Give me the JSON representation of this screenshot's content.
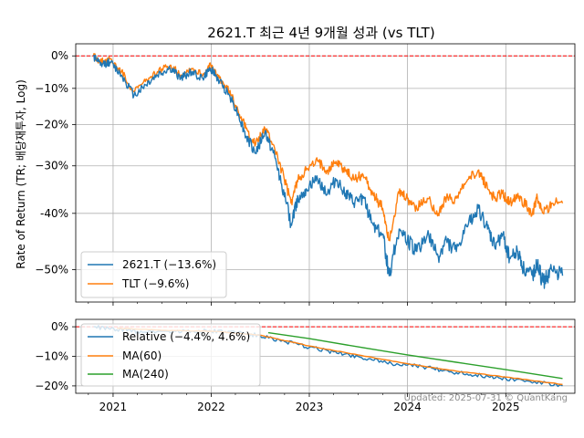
{
  "chart_data": [
    {
      "type": "line",
      "title": "2621.T 최근 4년 9개월 성과 (vs TLT)",
      "ylabel": "Rate of Return (TR; 배당재투자, Log)",
      "xlabel": "",
      "yscale": "log(1+r)",
      "ylim": [
        -55,
        4
      ],
      "yticks": [
        {
          "value": 0,
          "label": "0%"
        },
        {
          "value": -10,
          "label": "−10%"
        },
        {
          "value": -20,
          "label": "−20%"
        },
        {
          "value": -30,
          "label": "−30%"
        },
        {
          "value": -40,
          "label": "-40%"
        },
        {
          "value": -50,
          "label": "−50%"
        }
      ],
      "xlim": [
        "2020-08-15",
        "2025-09-15"
      ],
      "reference_line": {
        "y": 0,
        "color": "#ff0000",
        "style": "dashed"
      },
      "grid": true,
      "legend_position": "lower left",
      "series": [
        {
          "name": "2621.T (−13.6%)",
          "color": "#1f77b4",
          "points": [
            [
              "2020-10-20",
              0
            ],
            [
              "2020-11-15",
              -3
            ],
            [
              "2020-12-20",
              -2
            ],
            [
              "2021-02-01",
              -6
            ],
            [
              "2021-03-20",
              -12
            ],
            [
              "2021-05-01",
              -9
            ],
            [
              "2021-06-15",
              -6
            ],
            [
              "2021-08-01",
              -4
            ],
            [
              "2021-09-10",
              -7
            ],
            [
              "2021-10-20",
              -5
            ],
            [
              "2021-12-01",
              -7
            ],
            [
              "2021-12-30",
              -4
            ],
            [
              "2022-02-01",
              -8
            ],
            [
              "2022-03-10",
              -12
            ],
            [
              "2022-04-10",
              -17
            ],
            [
              "2022-05-10",
              -23
            ],
            [
              "2022-06-15",
              -27
            ],
            [
              "2022-07-20",
              -22
            ],
            [
              "2022-08-20",
              -27
            ],
            [
              "2022-09-20",
              -34
            ],
            [
              "2022-10-25",
              -42
            ],
            [
              "2022-11-20",
              -37
            ],
            [
              "2022-12-20",
              -35
            ],
            [
              "2023-02-01",
              -33
            ],
            [
              "2023-03-10",
              -36
            ],
            [
              "2023-04-10",
              -33
            ],
            [
              "2023-05-15",
              -36
            ],
            [
              "2023-06-15",
              -38
            ],
            [
              "2023-07-20",
              -37
            ],
            [
              "2023-08-25",
              -42
            ],
            [
              "2023-10-01",
              -44
            ],
            [
              "2023-10-25",
              -51
            ],
            [
              "2023-12-01",
              -43
            ],
            [
              "2024-01-01",
              -45
            ],
            [
              "2024-02-05",
              -47
            ],
            [
              "2024-03-15",
              -44
            ],
            [
              "2024-04-25",
              -48
            ],
            [
              "2024-05-25",
              -45
            ],
            [
              "2024-07-01",
              -47
            ],
            [
              "2024-08-15",
              -42
            ],
            [
              "2024-09-20",
              -39
            ],
            [
              "2024-10-25",
              -43
            ],
            [
              "2024-11-20",
              -46
            ],
            [
              "2024-12-20",
              -44
            ],
            [
              "2025-01-15",
              -48
            ],
            [
              "2025-02-15",
              -47
            ],
            [
              "2025-03-10",
              -50
            ],
            [
              "2025-04-10",
              -51
            ],
            [
              "2025-04-25",
              -49
            ],
            [
              "2025-05-20",
              -52
            ],
            [
              "2025-06-20",
              -50
            ],
            [
              "2025-07-31",
              -51
            ]
          ]
        },
        {
          "name": "TLT (−9.6%)",
          "color": "#ff7f0e",
          "points": [
            [
              "2020-10-20",
              0
            ],
            [
              "2020-11-15",
              -2
            ],
            [
              "2020-12-20",
              -1
            ],
            [
              "2021-02-01",
              -5
            ],
            [
              "2021-03-20",
              -11
            ],
            [
              "2021-05-01",
              -8
            ],
            [
              "2021-06-15",
              -5
            ],
            [
              "2021-08-01",
              -3
            ],
            [
              "2021-09-10",
              -6
            ],
            [
              "2021-10-20",
              -4
            ],
            [
              "2021-12-01",
              -6
            ],
            [
              "2021-12-30",
              -3
            ],
            [
              "2022-02-01",
              -7
            ],
            [
              "2022-03-10",
              -11
            ],
            [
              "2022-04-10",
              -16
            ],
            [
              "2022-05-10",
              -21
            ],
            [
              "2022-06-15",
              -25
            ],
            [
              "2022-07-20",
              -21
            ],
            [
              "2022-08-20",
              -25
            ],
            [
              "2022-09-20",
              -31
            ],
            [
              "2022-10-25",
              -38
            ],
            [
              "2022-11-20",
              -33
            ],
            [
              "2022-12-20",
              -31
            ],
            [
              "2023-02-01",
              -29
            ],
            [
              "2023-03-10",
              -31
            ],
            [
              "2023-04-10",
              -29
            ],
            [
              "2023-05-15",
              -31
            ],
            [
              "2023-06-15",
              -33
            ],
            [
              "2023-07-20",
              -32
            ],
            [
              "2023-08-25",
              -36
            ],
            [
              "2023-10-01",
              -39
            ],
            [
              "2023-10-25",
              -45
            ],
            [
              "2023-12-01",
              -36
            ],
            [
              "2024-01-01",
              -37
            ],
            [
              "2024-02-05",
              -39
            ],
            [
              "2024-03-15",
              -37
            ],
            [
              "2024-04-25",
              -40
            ],
            [
              "2024-05-25",
              -37
            ],
            [
              "2024-07-01",
              -37
            ],
            [
              "2024-08-15",
              -33
            ],
            [
              "2024-09-20",
              -31
            ],
            [
              "2024-10-25",
              -35
            ],
            [
              "2024-11-20",
              -37
            ],
            [
              "2024-12-20",
              -36
            ],
            [
              "2025-01-15",
              -38
            ],
            [
              "2025-02-15",
              -36
            ],
            [
              "2025-03-10",
              -38
            ],
            [
              "2025-04-10",
              -40
            ],
            [
              "2025-04-25",
              -37
            ],
            [
              "2025-05-20",
              -40
            ],
            [
              "2025-06-20",
              -38
            ],
            [
              "2025-07-31",
              -38
            ]
          ]
        }
      ]
    },
    {
      "type": "line",
      "ylim": [
        -22.5,
        2.5
      ],
      "yticks": [
        {
          "value": 0,
          "label": "0%"
        },
        {
          "value": -10,
          "label": "−10%"
        },
        {
          "value": -20,
          "label": "−20%"
        }
      ],
      "xticks": [
        {
          "date": "2021-01-01",
          "label": "2021"
        },
        {
          "date": "2022-01-01",
          "label": "2022"
        },
        {
          "date": "2023-01-01",
          "label": "2023"
        },
        {
          "date": "2024-01-01",
          "label": "2024"
        },
        {
          "date": "2025-01-01",
          "label": "2025"
        }
      ],
      "reference_line": {
        "y": 0,
        "color": "#ff0000",
        "style": "dashed"
      },
      "grid": true,
      "legend_position": "upper left",
      "series": [
        {
          "name": "Relative (−4.4%, 4.6%)",
          "color": "#1f77b4",
          "points": [
            [
              "2020-10-20",
              0
            ],
            [
              "2021-01-15",
              -1
            ],
            [
              "2021-04-01",
              -1.5
            ],
            [
              "2021-07-01",
              -1.5
            ],
            [
              "2021-10-01",
              -1.5
            ],
            [
              "2022-01-01",
              -1.5
            ],
            [
              "2022-04-01",
              -2
            ],
            [
              "2022-07-01",
              -3
            ],
            [
              "2022-10-01",
              -5
            ],
            [
              "2023-01-01",
              -7
            ],
            [
              "2023-04-01",
              -8.5
            ],
            [
              "2023-07-01",
              -10
            ],
            [
              "2023-10-01",
              -12
            ],
            [
              "2024-01-01",
              -13
            ],
            [
              "2024-04-01",
              -14
            ],
            [
              "2024-07-01",
              -15.5
            ],
            [
              "2024-10-01",
              -16.5
            ],
            [
              "2025-01-01",
              -17.5
            ],
            [
              "2025-04-01",
              -18.5
            ],
            [
              "2025-07-31",
              -20
            ]
          ]
        },
        {
          "name": "MA(60)",
          "color": "#ff7f0e",
          "points": [
            [
              "2021-01-15",
              -0.5
            ],
            [
              "2021-07-01",
              -1.2
            ],
            [
              "2022-01-01",
              -1.5
            ],
            [
              "2022-07-01",
              -2.8
            ],
            [
              "2023-01-01",
              -6.5
            ],
            [
              "2023-07-01",
              -9.5
            ],
            [
              "2024-01-01",
              -12.5
            ],
            [
              "2024-07-01",
              -15
            ],
            [
              "2025-01-01",
              -17
            ],
            [
              "2025-07-31",
              -19.5
            ]
          ]
        },
        {
          "name": "MA(240)",
          "color": "#2ca02c",
          "points": [
            [
              "2022-08-01",
              -2
            ],
            [
              "2023-01-01",
              -4
            ],
            [
              "2023-07-01",
              -6.8
            ],
            [
              "2024-01-01",
              -9.5
            ],
            [
              "2024-07-01",
              -12
            ],
            [
              "2025-01-01",
              -14.5
            ],
            [
              "2025-07-31",
              -17.5
            ]
          ]
        }
      ]
    }
  ],
  "footer": "Updated: 2025-07-31 © QuantKang"
}
